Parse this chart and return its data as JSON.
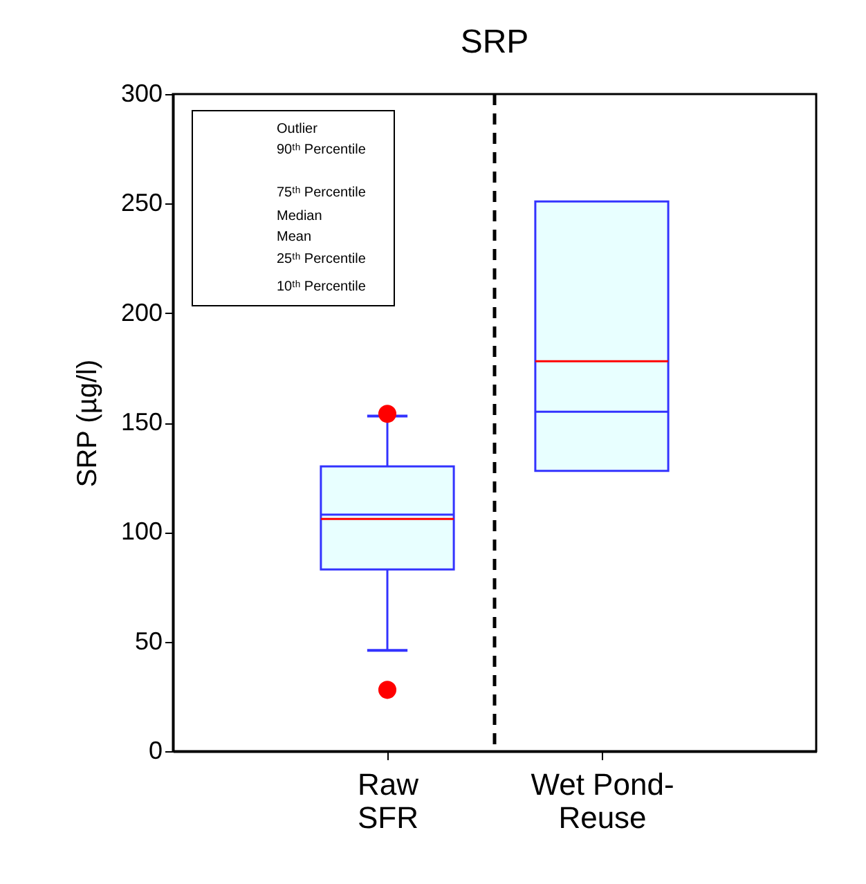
{
  "chart_data": {
    "type": "box",
    "title": "SRP",
    "ylabel": "SRP (µg/l)",
    "categories": [
      "Raw SFR",
      "Wet Pond-Reuse"
    ],
    "series": [
      {
        "color": "#3333ff",
        "boxes": [
          {
            "low": 46,
            "q1": 83,
            "median": 108,
            "q3": 130,
            "high": 153,
            "mean": 106,
            "outliers": [
              154,
              28
            ]
          },
          {
            "low": 128,
            "q1": 128,
            "median": 155,
            "q3": 251,
            "high": 251,
            "mean": 178
          }
        ]
      }
    ],
    "ylim": [
      0,
      300
    ],
    "yticks": [
      0,
      50,
      100,
      150,
      200,
      250,
      300
    ],
    "grid": false,
    "annotations": [
      "Outlier",
      "90ᵗʰ Percentile",
      "75ᵗʰ Percentile",
      "Median",
      "Mean",
      "25ᵗʰ Percentile",
      "10ᵗʰ Percentile"
    ]
  }
}
